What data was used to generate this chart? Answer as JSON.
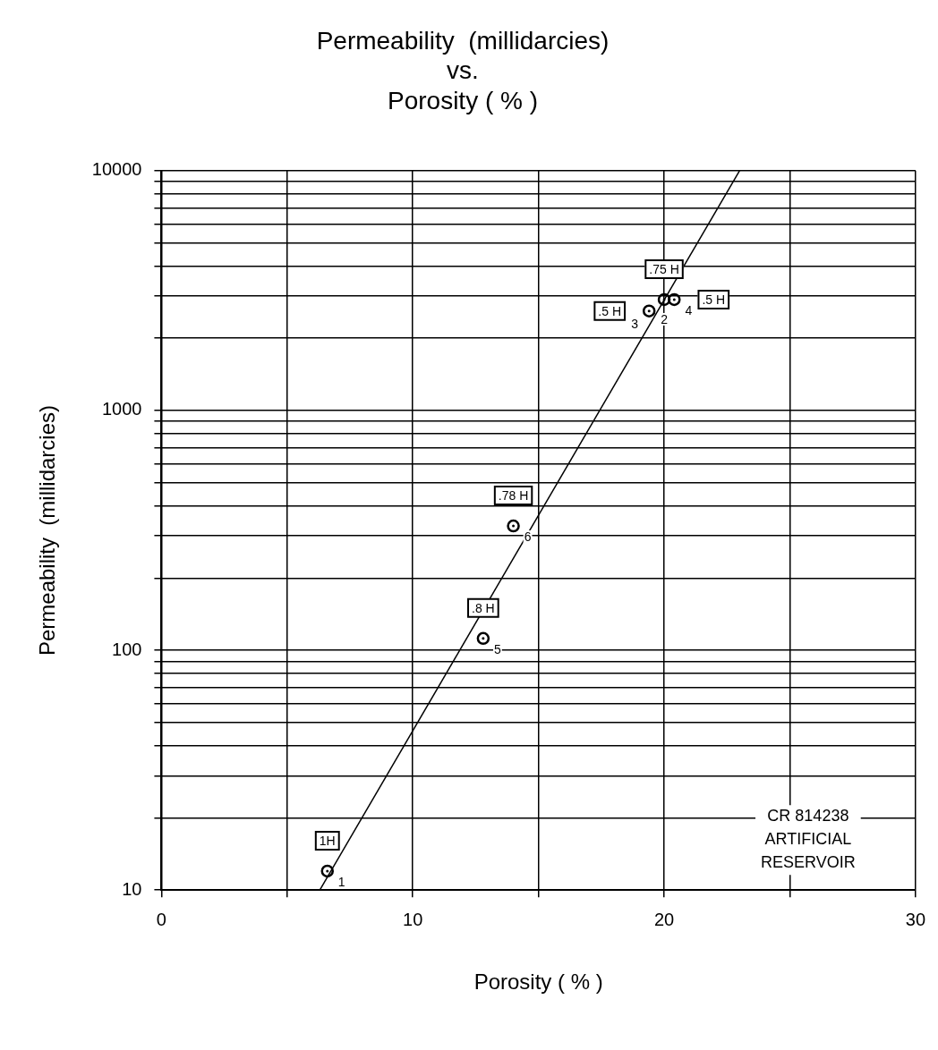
{
  "chart_data": {
    "type": "scatter",
    "title": "Permeability  (millidarcies)\nvs.\nPorosity ( % )",
    "xlabel": "Porosity ( % )",
    "ylabel": "Permeability  (millidarcies)",
    "xlim": [
      0,
      30
    ],
    "xticks": [
      0,
      {
        "value": 5,
        "label": null
      },
      10,
      {
        "value": 15,
        "label": null
      },
      20,
      {
        "value": 25,
        "label": null
      },
      30
    ],
    "ylim": [
      10,
      10000
    ],
    "yticks": [
      10,
      {
        "value": 20,
        "label": null
      },
      {
        "value": 30,
        "label": null
      },
      {
        "value": 40,
        "label": null
      },
      {
        "value": 50,
        "label": null
      },
      {
        "value": 60,
        "label": null
      },
      {
        "value": 70,
        "label": null
      },
      {
        "value": 80,
        "label": null
      },
      {
        "value": 90,
        "label": null
      },
      100,
      {
        "value": 200,
        "label": null
      },
      {
        "value": 300,
        "label": null
      },
      {
        "value": 400,
        "label": null
      },
      {
        "value": 500,
        "label": null
      },
      {
        "value": 600,
        "label": null
      },
      {
        "value": 700,
        "label": null
      },
      {
        "value": 800,
        "label": null
      },
      {
        "value": 900,
        "label": null
      },
      1000,
      {
        "value": 2000,
        "label": null
      },
      {
        "value": 3000,
        "label": null
      },
      {
        "value": 4000,
        "label": null
      },
      {
        "value": 5000,
        "label": null
      },
      {
        "value": 6000,
        "label": null
      },
      {
        "value": 7000,
        "label": null
      },
      {
        "value": 8000,
        "label": null
      },
      {
        "value": 9000,
        "label": null
      },
      10000
    ],
    "log": "y",
    "grid": true,
    "marker": "circle",
    "series": [
      {
        "color": "#000000",
        "x": [
          6.6,
          20,
          19.4,
          20.4,
          12.8,
          14
        ],
        "values": [
          12,
          2900,
          2600,
          2900,
          112,
          330
        ]
      },
      {
        "type": "line",
        "color": "#000000",
        "marker": "none",
        "x": [
          6.3,
          23
        ],
        "values": [
          10,
          10000
        ]
      }
    ],
    "annotations": [
      {
        "text": "1H",
        "x": 6.6,
        "y": 12
      },
      {
        "text": ".75 H",
        "x": 20,
        "y": 2900
      },
      {
        "text": ".5 H",
        "x": 19.4,
        "y": 2600
      },
      {
        "text": ".5 H",
        "x": 20.4,
        "y": 2900
      },
      {
        "text": ".8 H",
        "x": 12.8,
        "y": 112
      },
      {
        "text": ".78 H",
        "x": 14,
        "y": 330
      },
      {
        "text": "1",
        "x": 6.6,
        "y": 12
      },
      {
        "text": "2",
        "x": 20,
        "y": 2900
      },
      {
        "text": "3",
        "x": 19.4,
        "y": 2600
      },
      {
        "text": "4",
        "x": 20.4,
        "y": 2900
      },
      {
        "text": "5",
        "x": 12.8,
        "y": 112
      },
      {
        "text": "6",
        "x": 14,
        "y": 330
      },
      "CR 814238\nARTIFICIAL\nRESERVOIR"
    ]
  }
}
